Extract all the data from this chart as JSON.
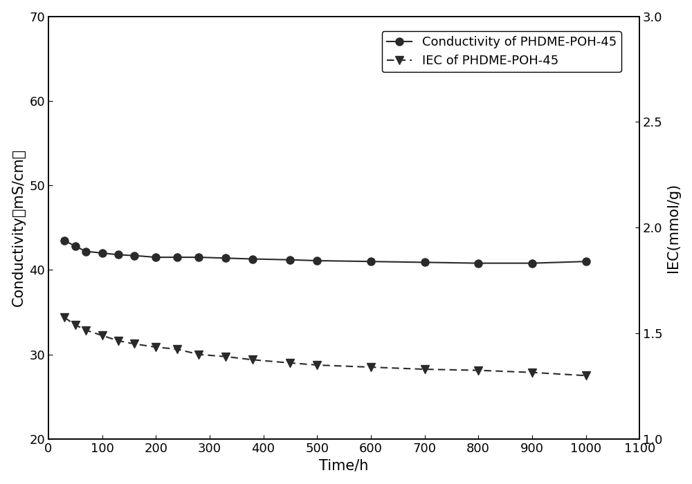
{
  "title": "",
  "xlabel": "Time/h",
  "ylabel_left": "Conductivity（mS/cm）",
  "ylabel_right": "IEC(mmol/g)",
  "xlim": [
    0,
    1100
  ],
  "ylim_left": [
    20,
    70
  ],
  "ylim_right": [
    1.0,
    3.0
  ],
  "xticks": [
    0,
    100,
    200,
    300,
    400,
    500,
    600,
    700,
    800,
    900,
    1000,
    1100
  ],
  "yticks_left": [
    20,
    30,
    40,
    50,
    60,
    70
  ],
  "yticks_right": [
    1.0,
    1.5,
    2.0,
    2.5,
    3.0
  ],
  "conductivity_x": [
    30,
    50,
    70,
    100,
    130,
    160,
    200,
    240,
    280,
    330,
    380,
    450,
    500,
    600,
    700,
    800,
    900,
    1000
  ],
  "conductivity_y": [
    43.5,
    42.8,
    42.2,
    42.0,
    41.8,
    41.7,
    41.5,
    41.5,
    41.5,
    41.4,
    41.3,
    41.2,
    41.1,
    41.0,
    40.9,
    40.8,
    40.8,
    41.0
  ],
  "iec_x": [
    30,
    50,
    70,
    100,
    130,
    160,
    200,
    240,
    280,
    330,
    380,
    450,
    500,
    600,
    700,
    800,
    900,
    1000
  ],
  "iec_y": [
    1.575,
    1.54,
    1.515,
    1.49,
    1.465,
    1.45,
    1.435,
    1.425,
    1.4,
    1.39,
    1.375,
    1.36,
    1.35,
    1.34,
    1.33,
    1.325,
    1.315,
    1.3
  ],
  "legend_conductivity": "Conductivity of PHDME-POH-45",
  "legend_iec": "IEC of PHDME-POH-45",
  "line_color": "#2a2a2a",
  "marker_size": 8,
  "linewidth": 1.5,
  "background_color": "#ffffff",
  "font_size_label": 15,
  "font_size_tick": 13,
  "font_size_legend": 13
}
